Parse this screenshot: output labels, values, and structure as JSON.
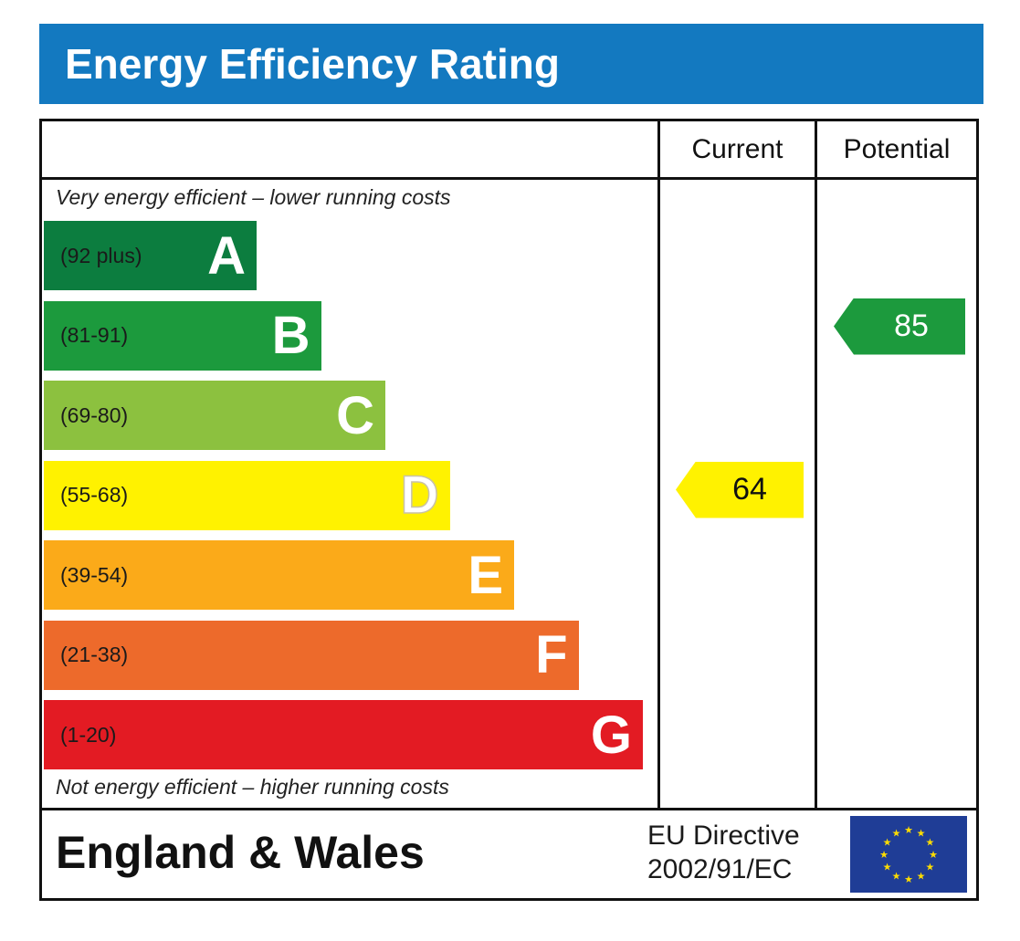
{
  "title": "Energy Efficiency Rating",
  "columns": {
    "current": "Current",
    "potential": "Potential"
  },
  "top_caption": "Very energy efficient – lower running costs",
  "bottom_caption": "Not energy efficient – higher running costs",
  "footer": {
    "region": "England & Wales",
    "directive_line1": "EU Directive",
    "directive_line2": "2002/91/EC",
    "flag_icon": "eu-flag-icon"
  },
  "colors": {
    "title_bar": "#1379c0",
    "A": "#0c7d3f",
    "B": "#1c9a3d",
    "C": "#8cc13f",
    "D": "#fff200",
    "E": "#fbaa19",
    "F": "#ed6a2b",
    "G": "#e31b23"
  },
  "chart_data": {
    "type": "bar",
    "categories": [
      "A",
      "B",
      "C",
      "D",
      "E",
      "F",
      "G"
    ],
    "ranges": [
      "(92 plus)",
      "(81-91)",
      "(69-80)",
      "(55-68)",
      "(39-54)",
      "(21-38)",
      "(1-20)"
    ],
    "ratings": {
      "current": 64,
      "potential": 85
    }
  }
}
